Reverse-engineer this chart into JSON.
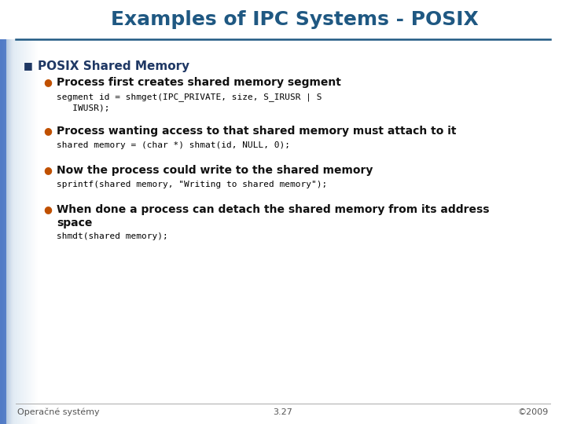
{
  "title": "Examples of IPC Systems - POSIX",
  "title_color": "#1F5882",
  "title_fontsize": 18,
  "bg_color": "#FFFFFF",
  "left_bar_color": "#4472C4",
  "left_bar_fade_color": "#C5D5EA",
  "line_color": "#1F5882",
  "bullet1_text": "POSIX Shared Memory",
  "bullet1_color": "#1F3864",
  "bullet1_marker_color": "#1F3864",
  "sub_bullet_color": "#C05000",
  "sub_bullets": [
    "Process first creates shared memory segment",
    "Process wanting access to that shared memory must attach to it",
    "Now the process could write to the shared memory",
    "When done a process can detach the shared memory from its address\nspace"
  ],
  "code_blocks": [
    "segment id = shmget(IPC_PRIVATE, size, S_IRUSR | S\n   IWUSR);",
    "shared memory = (char *) shmat(id, NULL, 0);",
    "sprintf(shared memory, \"Writing to shared memory\");",
    "shmdt(shared memory);"
  ],
  "code_color": "#000000",
  "footer_left": "Operačné systémy",
  "footer_center": "3.27",
  "footer_right": "©2009",
  "footer_color": "#555555",
  "footer_fontsize": 8
}
